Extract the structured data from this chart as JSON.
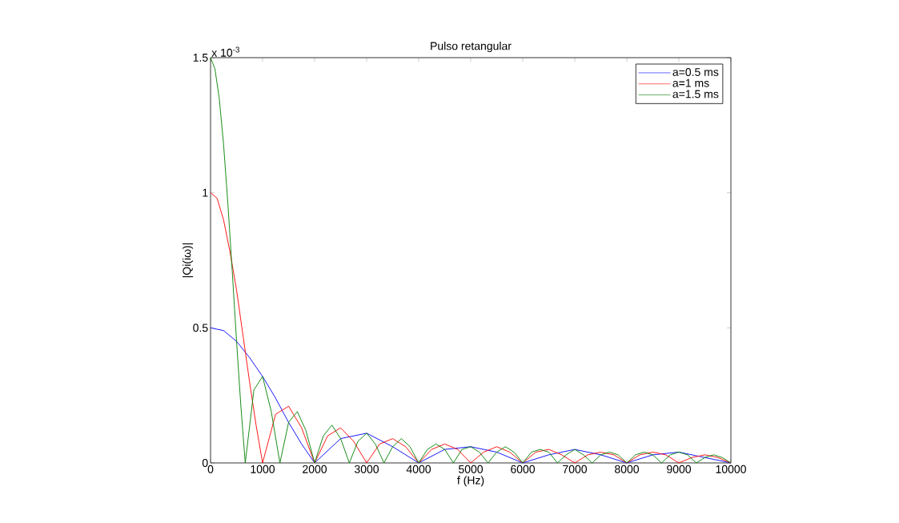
{
  "chart_data": {
    "type": "line",
    "title": "Pulso retangular",
    "xlabel": "f (Hz)",
    "ylabel": "|Qi(iω)|",
    "annotations": [
      "x 10$^{-3}$"
    ],
    "xlim": [
      0,
      10000
    ],
    "xticks": [
      0,
      1000,
      2000,
      3000,
      4000,
      5000,
      6000,
      7000,
      8000,
      9000,
      10000
    ],
    "ylim": [
      0,
      1.5
    ],
    "yticks": [
      0,
      0.5,
      1,
      1.5
    ],
    "legend": "top right",
    "grid": false,
    "marker": "none",
    "line_style": "solid",
    "series": [
      {
        "name": "a=0.5 ms",
        "color": "#0000ff",
        "x": [
          0,
          250,
          500,
          750,
          1000,
          1250,
          1500,
          1750,
          2000,
          2500,
          3000,
          3500,
          4000,
          4500,
          5000,
          5500,
          6000,
          6500,
          7000,
          7500,
          8000,
          8500,
          9000,
          9500,
          10000
        ],
        "values": [
          0.5,
          0.49,
          0.45,
          0.39,
          0.32,
          0.24,
          0.15,
          0.07,
          0,
          0.09,
          0.11,
          0.06,
          0,
          0.05,
          0.06,
          0.04,
          0,
          0.03,
          0.05,
          0.03,
          0,
          0.03,
          0.04,
          0.02,
          0
        ]
      },
      {
        "name": "a=1 ms",
        "color": "#ff0000",
        "x": [
          0,
          125,
          250,
          375,
          500,
          625,
          750,
          875,
          1000,
          1250,
          1500,
          1750,
          2000,
          2250,
          2500,
          2750,
          3000,
          3250,
          3500,
          3750,
          4000,
          4250,
          4500,
          4750,
          5000,
          5250,
          5500,
          5750,
          6000,
          6250,
          6500,
          6750,
          7000,
          7250,
          7500,
          7750,
          8000,
          8250,
          8500,
          8750,
          9000,
          9250,
          9500,
          9750,
          10000
        ],
        "values": [
          1,
          0.98,
          0.9,
          0.78,
          0.64,
          0.47,
          0.3,
          0.14,
          0,
          0.18,
          0.21,
          0.13,
          0,
          0.1,
          0.13,
          0.08,
          0,
          0.07,
          0.09,
          0.06,
          0,
          0.05,
          0.07,
          0.05,
          0,
          0.04,
          0.06,
          0.04,
          0,
          0.04,
          0.05,
          0.03,
          0,
          0.03,
          0.04,
          0.03,
          0,
          0.03,
          0.04,
          0.03,
          0,
          0.02,
          0.03,
          0.02,
          0
        ]
      },
      {
        "name": "a=1.5 ms",
        "color": "#008000",
        "x": [
          0,
          83,
          167,
          250,
          333,
          417,
          500,
          583,
          667,
          833,
          1000,
          1167,
          1333,
          1500,
          1667,
          1833,
          2000,
          2167,
          2333,
          2500,
          2667,
          2833,
          3000,
          3167,
          3333,
          3500,
          3667,
          3833,
          4000,
          4167,
          4333,
          4500,
          4667,
          4833,
          5000,
          5167,
          5333,
          5500,
          5667,
          5833,
          6000,
          6167,
          6333,
          6500,
          6667,
          6833,
          7000,
          7167,
          7333,
          7500,
          7667,
          7833,
          8000,
          8167,
          8333,
          8500,
          8667,
          8833,
          9000,
          9167,
          9333,
          9500,
          9667,
          9833,
          10000
        ],
        "values": [
          1.5,
          1.46,
          1.35,
          1.18,
          0.96,
          0.71,
          0.45,
          0.21,
          0,
          0.27,
          0.32,
          0.19,
          0,
          0.15,
          0.19,
          0.12,
          0,
          0.1,
          0.14,
          0.09,
          0,
          0.08,
          0.11,
          0.07,
          0,
          0.06,
          0.09,
          0.06,
          0,
          0.05,
          0.07,
          0.05,
          0,
          0.05,
          0.06,
          0.04,
          0,
          0.04,
          0.06,
          0.04,
          0,
          0.04,
          0.05,
          0.04,
          0,
          0.03,
          0.05,
          0.03,
          0,
          0.03,
          0.04,
          0.03,
          0,
          0.03,
          0.04,
          0.03,
          0,
          0.03,
          0.04,
          0.03,
          0,
          0.02,
          0.03,
          0.02,
          0
        ]
      }
    ]
  }
}
